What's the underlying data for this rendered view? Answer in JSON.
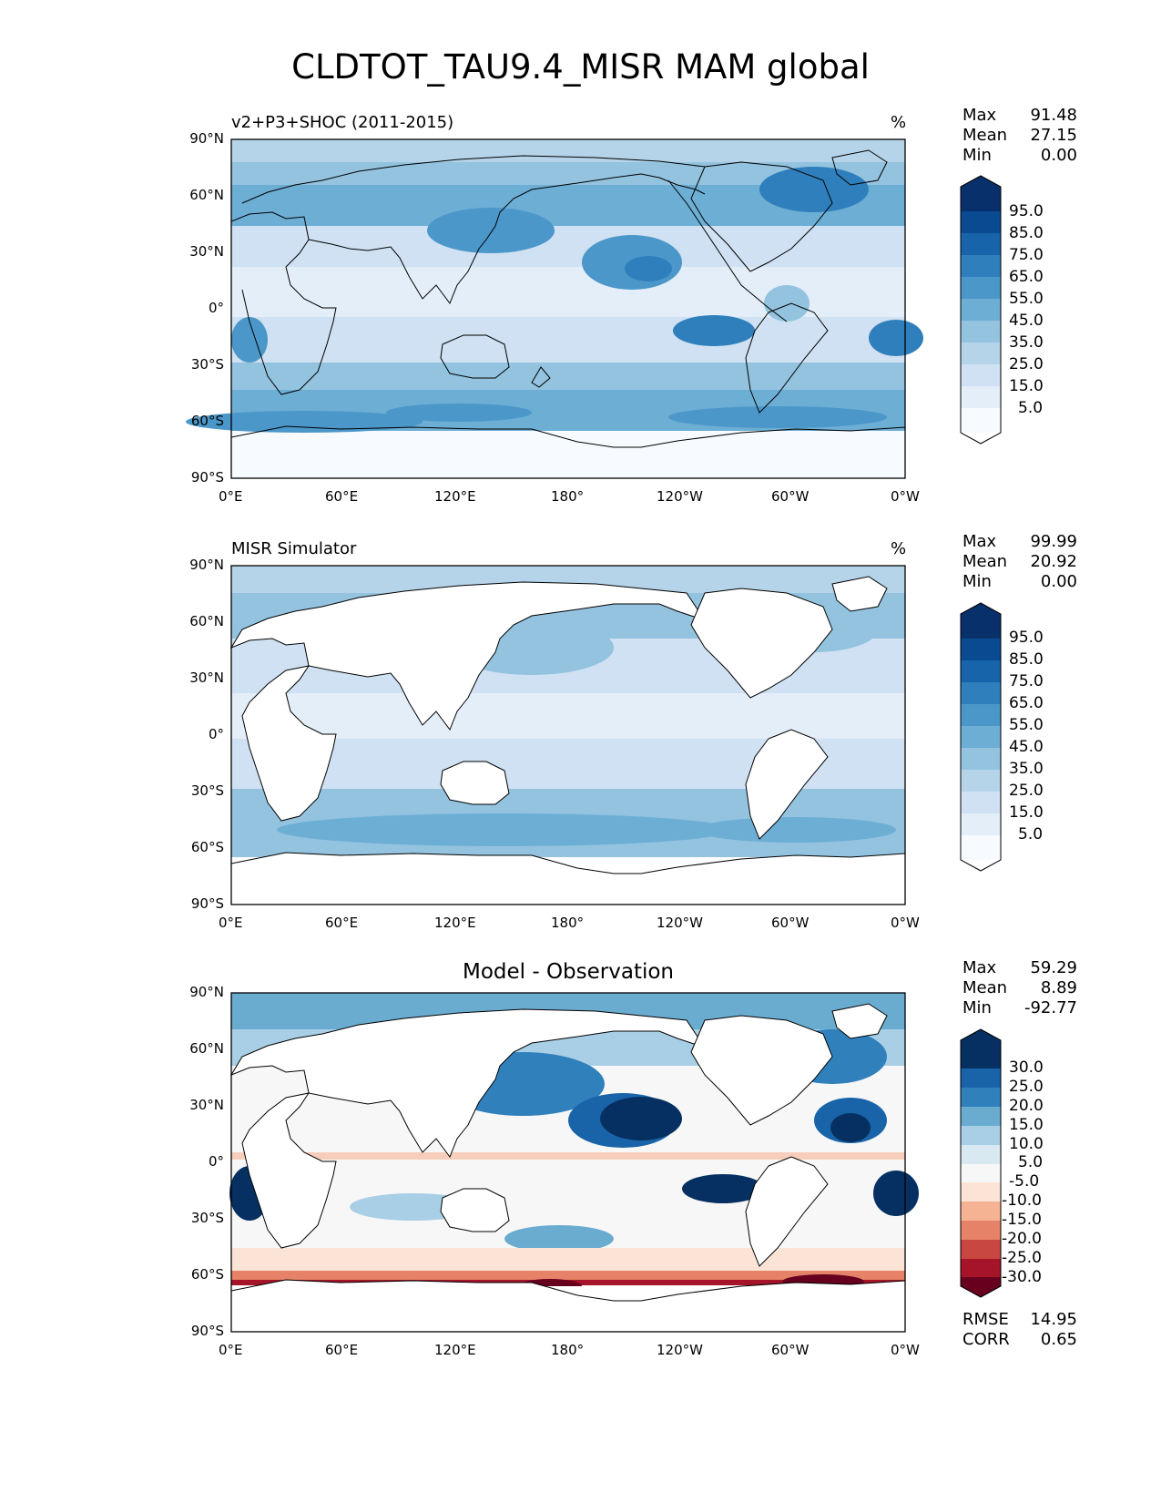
{
  "figure_title": "CLDTOT_TAU9.4_MISR MAM global",
  "lat_ticks": [
    "90°N",
    "60°N",
    "30°N",
    "0°",
    "30°S",
    "60°S",
    "90°S"
  ],
  "lon_ticks": [
    "0°E",
    "60°E",
    "120°E",
    "180°",
    "120°W",
    "60°W",
    "0°W"
  ],
  "panels": [
    {
      "title": "v2+P3+SHOC (2011-2015)",
      "units": "%",
      "stats": [
        {
          "label": "Max",
          "value": "91.48"
        },
        {
          "label": "Mean",
          "value": "27.15"
        },
        {
          "label": "Min",
          "value": "0.00"
        }
      ],
      "colorbar_labels": [
        "95.0",
        "85.0",
        "75.0",
        "65.0",
        "55.0",
        "45.0",
        "35.0",
        "25.0",
        "15.0",
        "5.0"
      ]
    },
    {
      "title": "MISR Simulator",
      "units": "%",
      "stats": [
        {
          "label": "Max",
          "value": "99.99"
        },
        {
          "label": "Mean",
          "value": "20.92"
        },
        {
          "label": "Min",
          "value": "0.00"
        }
      ],
      "colorbar_labels": [
        "95.0",
        "85.0",
        "75.0",
        "65.0",
        "55.0",
        "45.0",
        "35.0",
        "25.0",
        "15.0",
        "5.0"
      ]
    },
    {
      "title": "Model - Observation",
      "units": "",
      "stats": [
        {
          "label": "Max",
          "value": "59.29"
        },
        {
          "label": "Mean",
          "value": "8.89"
        },
        {
          "label": "Min",
          "value": "-92.77"
        }
      ],
      "colorbar_labels": [
        "30.0",
        "25.0",
        "20.0",
        "15.0",
        "10.0",
        "5.0",
        "-5.0",
        "-10.0",
        "-15.0",
        "-20.0",
        "-25.0",
        "-30.0"
      ],
      "metrics": [
        {
          "label": "RMSE",
          "value": "14.95"
        },
        {
          "label": "CORR",
          "value": "0.65"
        }
      ]
    }
  ],
  "colors": {
    "blues": [
      "#f7fbff",
      "#e3eef9",
      "#cfe1f2",
      "#b5d4e9",
      "#93c3df",
      "#6daed5",
      "#4b97c9",
      "#2f7fbc",
      "#1864aa",
      "#0a4a90",
      "#08306b"
    ],
    "diff": [
      "#67001f",
      "#a51429",
      "#c94741",
      "#e58267",
      "#f6b394",
      "#fbe3d6",
      "#f7f7f7",
      "#d9e9f1",
      "#a8cfe5",
      "#6aacd0",
      "#3080bc",
      "#1964a9",
      "#053061"
    ]
  }
}
